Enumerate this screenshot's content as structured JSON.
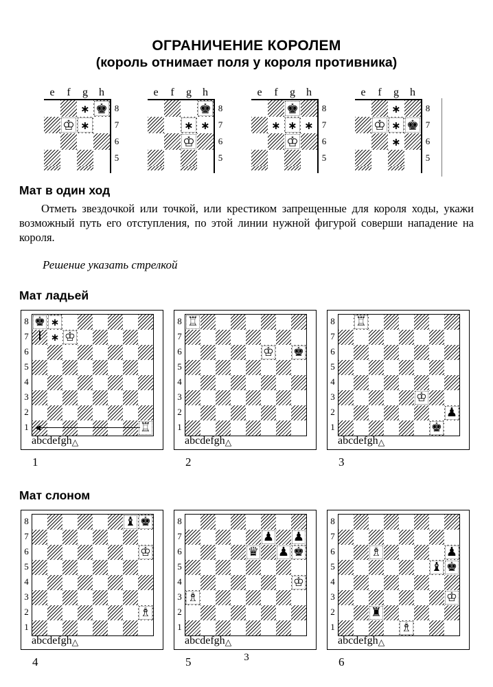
{
  "page_number": "3",
  "title": {
    "line1": "ОГРАНИЧЕНИЕ КОРОЛЕМ",
    "line2": "(король отнимает поля у короля противника)"
  },
  "intro": {
    "heading": "Мат в один ход",
    "paragraph": "Отметь звездочкой или точкой, или крестиком запрещенные для короля ходы, укажи возможный путь его отступления, по этой линии нужной фигурой соверши нападение на короля.",
    "note": "Решение указать стрелкой"
  },
  "rook_section_heading": "Мат ладьей",
  "bishop_section_heading": "Мат слоном",
  "symbols": {
    "white_to_move": "△",
    "mark": "∗"
  },
  "board_labels": {
    "files": [
      "a",
      "b",
      "c",
      "d",
      "e",
      "f",
      "g",
      "h"
    ],
    "ranks_desc": [
      "8",
      "7",
      "6",
      "5",
      "4",
      "3",
      "2",
      "1"
    ]
  },
  "mini_labels": {
    "files": [
      "e",
      "f",
      "g",
      "h"
    ],
    "ranks": [
      "8",
      "7",
      "6",
      "5"
    ]
  },
  "mini_diagrams": [
    {
      "pieces": [
        {
          "square": "f7",
          "code": "wK"
        },
        {
          "square": "h8",
          "code": "bK"
        }
      ],
      "marks": [
        "g8",
        "g7"
      ]
    },
    {
      "pieces": [
        {
          "square": "g6",
          "code": "wK"
        },
        {
          "square": "h8",
          "code": "bK"
        }
      ],
      "marks": [
        "g7",
        "h7"
      ]
    },
    {
      "pieces": [
        {
          "square": "g6",
          "code": "wK"
        },
        {
          "square": "g8",
          "code": "bK"
        }
      ],
      "marks": [
        "f7",
        "g7",
        "h7"
      ]
    },
    {
      "pieces": [
        {
          "square": "f7",
          "code": "wK"
        },
        {
          "square": "h7",
          "code": "bK"
        }
      ],
      "marks": [
        "g8",
        "g7",
        "g6"
      ]
    }
  ],
  "diagrams": [
    {
      "label": "1",
      "pieces": [
        {
          "square": "a8",
          "code": "bK"
        },
        {
          "square": "c7",
          "code": "wK"
        },
        {
          "square": "h1",
          "code": "wR"
        }
      ],
      "marks": [
        "b8",
        "b7"
      ],
      "arrow": {
        "from": "h1",
        "to": "a1"
      },
      "tick": "a7"
    },
    {
      "label": "2",
      "pieces": [
        {
          "square": "a8",
          "code": "wR"
        },
        {
          "square": "f6",
          "code": "wK"
        },
        {
          "square": "h6",
          "code": "bK"
        }
      ],
      "marks": []
    },
    {
      "label": "3",
      "pieces": [
        {
          "square": "b8",
          "code": "wR"
        },
        {
          "square": "f3",
          "code": "wK"
        },
        {
          "square": "h2",
          "code": "bP"
        },
        {
          "square": "g1",
          "code": "bK"
        }
      ],
      "marks": []
    },
    {
      "label": "4",
      "pieces": [
        {
          "square": "g8",
          "code": "bB"
        },
        {
          "square": "h8",
          "code": "bK"
        },
        {
          "square": "h6",
          "code": "wK"
        },
        {
          "square": "h2",
          "code": "wB"
        }
      ],
      "marks": []
    },
    {
      "label": "5",
      "pieces": [
        {
          "square": "f7",
          "code": "bP"
        },
        {
          "square": "h7",
          "code": "bP"
        },
        {
          "square": "e6",
          "code": "bQ"
        },
        {
          "square": "g6",
          "code": "bP"
        },
        {
          "square": "h6",
          "code": "bK"
        },
        {
          "square": "h4",
          "code": "wK"
        },
        {
          "square": "a3",
          "code": "wB"
        }
      ],
      "marks": []
    },
    {
      "label": "6",
      "pieces": [
        {
          "square": "c6",
          "code": "wB"
        },
        {
          "square": "h6",
          "code": "bP"
        },
        {
          "square": "g5",
          "code": "bB"
        },
        {
          "square": "h5",
          "code": "bK"
        },
        {
          "square": "h3",
          "code": "wK"
        },
        {
          "square": "c2",
          "code": "bR"
        },
        {
          "square": "e1",
          "code": "wB"
        }
      ],
      "marks": []
    }
  ]
}
